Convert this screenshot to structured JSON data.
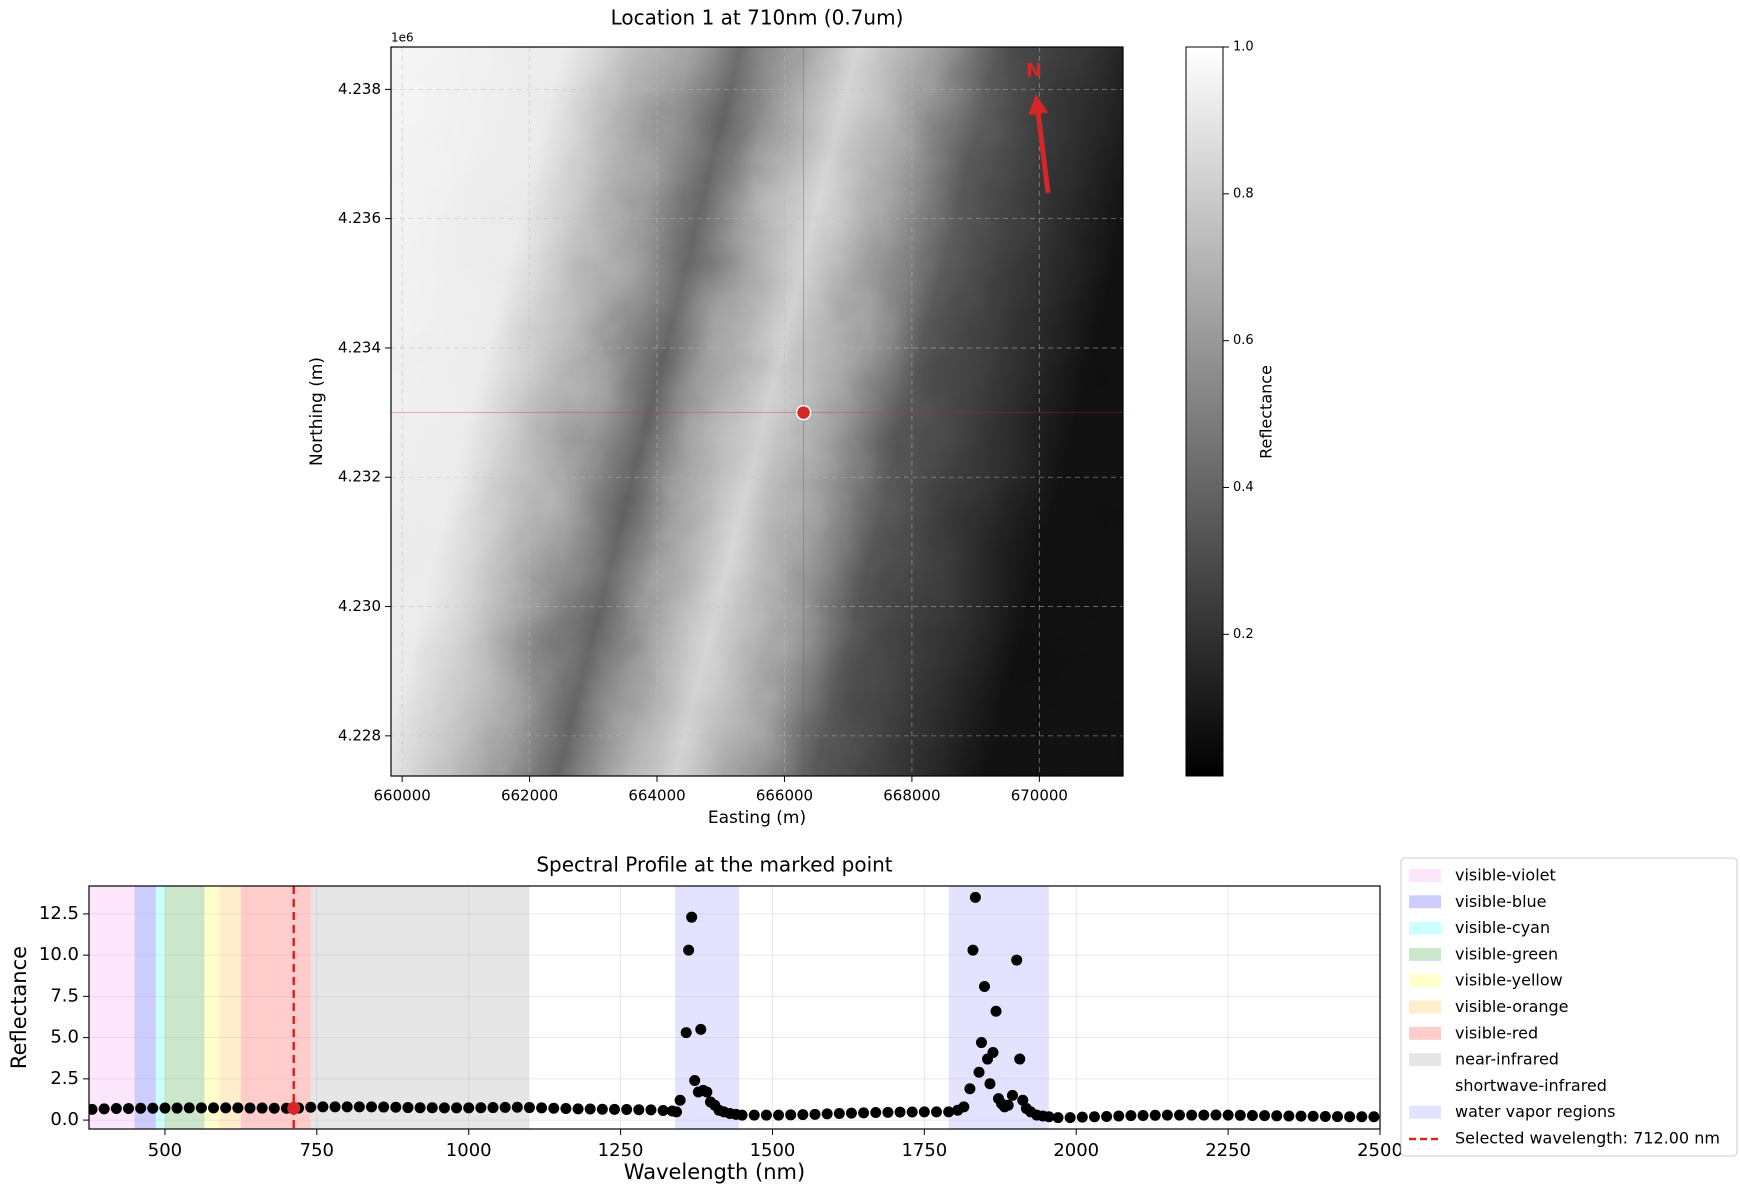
{
  "chart_data": [
    {
      "type": "heatmap",
      "title": "Location 1 at 710nm (0.7um)",
      "xlabel": "Easting (m)",
      "ylabel": "Northing (m)",
      "offset_text": "1e6",
      "xlim": [
        659825,
        671313
      ],
      "ylim": [
        4227379,
        4238655
      ],
      "xticks": [
        660000,
        662000,
        664000,
        666000,
        668000,
        670000
      ],
      "yticks": [
        {
          "value": 4228000,
          "label": "4.228"
        },
        {
          "value": 4230000,
          "label": "4.230"
        },
        {
          "value": 4232000,
          "label": "4.232"
        },
        {
          "value": 4234000,
          "label": "4.234"
        },
        {
          "value": 4236000,
          "label": "4.236"
        },
        {
          "value": 4238000,
          "label": "4.238"
        }
      ],
      "grid": true,
      "colormap": "gray",
      "point": {
        "x": 666300,
        "y": 4233000,
        "color": "#d62728"
      },
      "north_label": "N",
      "north_color": "#d62728",
      "colorbar": {
        "label": "Reflectance",
        "lim": [
          0.007,
          1.0
        ],
        "ticks": [
          0.2,
          0.4,
          0.6,
          0.8,
          {
            "value": 1.0,
            "label": "1.0"
          }
        ]
      }
    },
    {
      "type": "scatter",
      "title": "Spectral Profile at the marked point",
      "xlabel": "Wavelength (nm)",
      "ylabel": "Reflectance",
      "xlim": [
        375,
        2500
      ],
      "ylim": [
        -0.54,
        14.19
      ],
      "xticks": [
        500,
        750,
        1000,
        1250,
        1500,
        1750,
        2000,
        2250,
        2500
      ],
      "yticks": [
        {
          "value": 0.0,
          "label": "0.0"
        },
        2.5,
        {
          "value": 5.0,
          "label": "5.0"
        },
        7.5,
        {
          "value": 10.0,
          "label": "10.0"
        },
        12.5
      ],
      "grid": true,
      "color": "#000000",
      "legend": "outside-right",
      "bands": [
        {
          "name": "visible-violet",
          "color": "#ee82ee",
          "alpha": 0.2,
          "ranges": [
            [
              375,
              450
            ]
          ]
        },
        {
          "name": "visible-blue",
          "color": "#0000ff",
          "alpha": 0.2,
          "ranges": [
            [
              450,
              485
            ]
          ]
        },
        {
          "name": "visible-cyan",
          "color": "#00ffff",
          "alpha": 0.2,
          "ranges": [
            [
              485,
              500
            ]
          ]
        },
        {
          "name": "visible-green",
          "color": "#008000",
          "alpha": 0.2,
          "ranges": [
            [
              500,
              565
            ]
          ]
        },
        {
          "name": "visible-yellow",
          "color": "#ffff00",
          "alpha": 0.2,
          "ranges": [
            [
              565,
              590
            ]
          ]
        },
        {
          "name": "visible-orange",
          "color": "#ffa500",
          "alpha": 0.2,
          "ranges": [
            [
              590,
              625
            ]
          ]
        },
        {
          "name": "visible-red",
          "color": "#ff0000",
          "alpha": 0.2,
          "ranges": [
            [
              625,
              740
            ]
          ]
        },
        {
          "name": "near-infrared",
          "color": "#808080",
          "alpha": 0.2,
          "ranges": [
            [
              740,
              1100
            ]
          ]
        },
        {
          "name": "shortwave-infrared",
          "color": "#ffffff",
          "alpha": 0.2,
          "ranges": [
            [
              1100,
              2500
            ]
          ]
        },
        {
          "name": "water vapor regions",
          "color": "#0000ff",
          "alpha": 0.11,
          "ranges": [
            [
              1340,
              1445
            ],
            [
              1790,
              1955
            ]
          ]
        }
      ],
      "selected": {
        "label": "Selected wavelength: 712.00 nm",
        "value": 712,
        "reflectance": 0.72,
        "color": "#d62728"
      },
      "x": [
        380,
        400,
        420,
        440,
        460,
        480,
        500,
        520,
        540,
        560,
        580,
        600,
        620,
        640,
        660,
        680,
        700,
        720,
        740,
        760,
        780,
        800,
        820,
        840,
        860,
        880,
        900,
        920,
        940,
        960,
        980,
        1000,
        1020,
        1040,
        1060,
        1080,
        1100,
        1120,
        1140,
        1160,
        1180,
        1200,
        1220,
        1240,
        1260,
        1280,
        1300,
        1320,
        1335,
        1342,
        1348,
        1358,
        1362,
        1367,
        1372,
        1378,
        1382,
        1386,
        1392,
        1398,
        1405,
        1412,
        1420,
        1430,
        1440,
        1450,
        1470,
        1490,
        1510,
        1530,
        1550,
        1570,
        1590,
        1610,
        1630,
        1650,
        1670,
        1690,
        1710,
        1730,
        1750,
        1770,
        1790,
        1805,
        1815,
        1825,
        1830,
        1834,
        1840,
        1844,
        1849,
        1854,
        1858,
        1863,
        1868,
        1872,
        1877,
        1882,
        1888,
        1895,
        1902,
        1907,
        1912,
        1918,
        1925,
        1935,
        1945,
        1955,
        1970,
        1990,
        2010,
        2030,
        2050,
        2070,
        2090,
        2110,
        2130,
        2150,
        2170,
        2190,
        2210,
        2230,
        2250,
        2270,
        2290,
        2310,
        2330,
        2350,
        2370,
        2390,
        2410,
        2430,
        2450,
        2470,
        2490
      ],
      "values": [
        0.65,
        0.68,
        0.7,
        0.7,
        0.72,
        0.72,
        0.73,
        0.73,
        0.74,
        0.74,
        0.74,
        0.74,
        0.74,
        0.73,
        0.73,
        0.72,
        0.72,
        0.73,
        0.78,
        0.8,
        0.8,
        0.8,
        0.8,
        0.8,
        0.79,
        0.78,
        0.76,
        0.75,
        0.75,
        0.74,
        0.74,
        0.74,
        0.75,
        0.76,
        0.77,
        0.78,
        0.76,
        0.74,
        0.72,
        0.7,
        0.68,
        0.67,
        0.66,
        0.65,
        0.64,
        0.63,
        0.62,
        0.58,
        0.55,
        0.5,
        1.2,
        5.3,
        10.3,
        12.3,
        2.4,
        1.7,
        5.5,
        1.8,
        1.7,
        1.1,
        0.9,
        0.6,
        0.5,
        0.4,
        0.35,
        0.3,
        0.3,
        0.3,
        0.3,
        0.32,
        0.33,
        0.35,
        0.38,
        0.4,
        0.42,
        0.44,
        0.46,
        0.47,
        0.48,
        0.49,
        0.5,
        0.5,
        0.5,
        0.6,
        0.8,
        1.9,
        10.3,
        13.5,
        2.9,
        4.7,
        8.1,
        3.7,
        2.2,
        4.1,
        6.6,
        1.3,
        1.0,
        0.8,
        0.9,
        1.5,
        9.7,
        3.7,
        1.2,
        0.7,
        0.5,
        0.3,
        0.25,
        0.2,
        0.15,
        0.15,
        0.18,
        0.2,
        0.22,
        0.25,
        0.27,
        0.28,
        0.29,
        0.3,
        0.3,
        0.3,
        0.3,
        0.31,
        0.3,
        0.29,
        0.28,
        0.27,
        0.26,
        0.25,
        0.24,
        0.23,
        0.22,
        0.21,
        0.2,
        0.2,
        0.2
      ]
    }
  ]
}
